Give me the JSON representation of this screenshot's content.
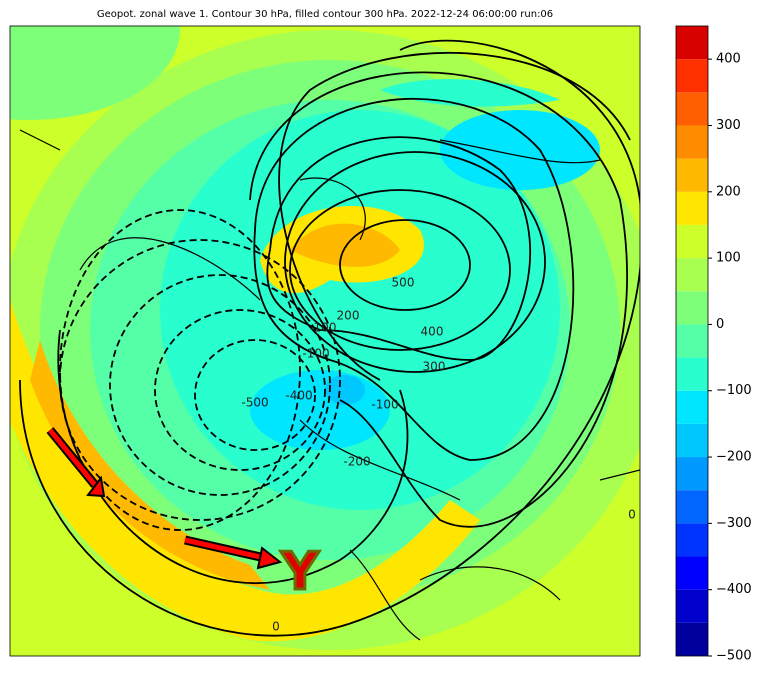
{
  "title": "Geopot. zonal wave 1. Contour 30 hPa, filled contour 300 hPa. 2022-12-24 06:00:00 run:06",
  "annotation": "Y",
  "contour_labels": [
    "500",
    "400",
    "300",
    "200",
    "100",
    "-100",
    "-400",
    "-500",
    "-100",
    "-200",
    "0",
    "0"
  ],
  "colorbar": {
    "levels": [
      -500,
      -450,
      -400,
      -350,
      -300,
      -250,
      -200,
      -150,
      -100,
      -50,
      0,
      50,
      100,
      150,
      200,
      250,
      300,
      350,
      400,
      450
    ],
    "colors": [
      "#00009f",
      "#0000cd",
      "#0000ff",
      "#0033ff",
      "#0066ff",
      "#0099ff",
      "#00c8ff",
      "#00e6ff",
      "#29ffce",
      "#55ffa8",
      "#7dff7a",
      "#a8ff50",
      "#cdff2a",
      "#ffe600",
      "#ffb900",
      "#ff8c00",
      "#ff5f00",
      "#ff2f00",
      "#d90000",
      "#a00000"
    ],
    "ticks": [
      {
        "value": -500,
        "label": "−500"
      },
      {
        "value": -400,
        "label": "−400"
      },
      {
        "value": -300,
        "label": "−300"
      },
      {
        "value": -200,
        "label": "−200"
      },
      {
        "value": -100,
        "label": "−100"
      },
      0,
      100,
      200,
      300,
      400
    ]
  }
}
